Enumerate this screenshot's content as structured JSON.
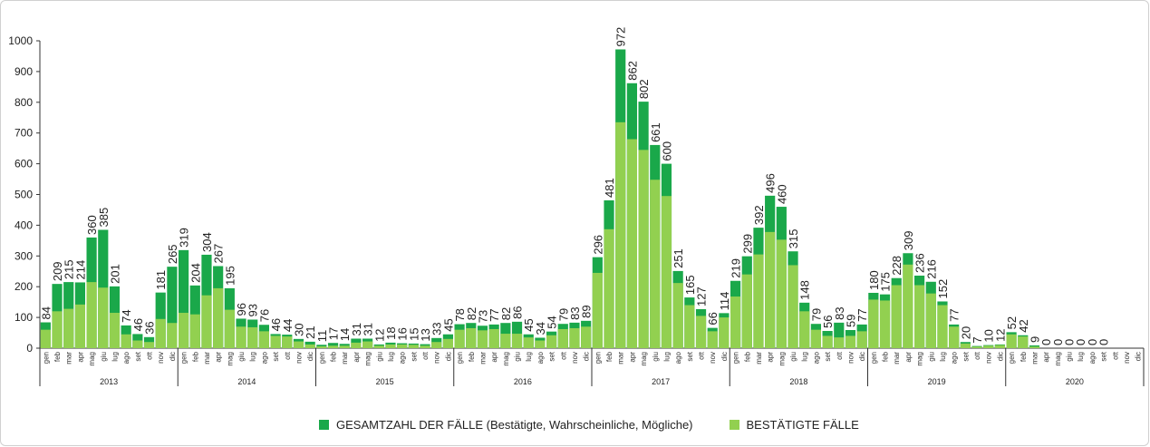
{
  "chart_data": {
    "type": "bar",
    "stacking": "overlay",
    "ylim": [
      0,
      1000
    ],
    "yticks": [
      0,
      100,
      200,
      300,
      400,
      500,
      600,
      700,
      800,
      900,
      1000
    ],
    "grid": false,
    "legend_position": "bottom-center",
    "month_labels": [
      "gen",
      "feb",
      "mar",
      "apr",
      "mag",
      "giu",
      "lug",
      "ago",
      "set",
      "ott",
      "nov",
      "dic"
    ],
    "years": [
      "2013",
      "2014",
      "2015",
      "2016",
      "2017",
      "2018",
      "2019",
      "2020"
    ],
    "series": [
      {
        "name": "GESAMTZAHL DER FÄLLE (Bestätigte, Wahrscheinliche, Mögliche)",
        "color": "#1aa84a",
        "values": [
          84,
          209,
          215,
          214,
          360,
          385,
          201,
          74,
          46,
          36,
          181,
          265,
          319,
          204,
          304,
          267,
          195,
          96,
          93,
          76,
          46,
          44,
          30,
          21,
          11,
          17,
          14,
          31,
          31,
          12,
          18,
          16,
          15,
          13,
          33,
          45,
          78,
          82,
          73,
          77,
          82,
          86,
          45,
          34,
          54,
          79,
          83,
          89,
          296,
          481,
          972,
          862,
          802,
          661,
          600,
          251,
          165,
          127,
          66,
          114,
          219,
          299,
          392,
          496,
          460,
          315,
          148,
          79,
          56,
          83,
          59,
          77,
          180,
          175,
          228,
          309,
          236,
          216,
          152,
          77,
          20,
          7,
          10,
          12,
          52,
          42,
          9,
          0,
          0,
          0,
          0,
          0,
          0,
          0,
          0,
          0
        ],
        "labels": [
          "84",
          "209",
          "215",
          "214",
          "360",
          "385",
          "201",
          "74",
          "46",
          "36",
          "181",
          "265",
          "319",
          "204",
          "304",
          "267",
          "195",
          "96",
          "93",
          "76",
          "46",
          "44",
          "30",
          "21",
          "11",
          "17",
          "14",
          "31",
          "31",
          "12",
          "18",
          "16",
          "15",
          "13",
          "33",
          "45",
          "78",
          "82",
          "73",
          "77",
          "82",
          "86",
          "45",
          "34",
          "54",
          "79",
          "83",
          "89",
          "296",
          "481",
          "972",
          "862",
          "802",
          "661",
          "600",
          "251",
          "165",
          "127",
          "66",
          "114",
          "219",
          "299",
          "392",
          "496",
          "460",
          "315",
          "148",
          "79",
          "56",
          "83",
          "59",
          "77",
          "180",
          "175",
          "228",
          "309",
          "236",
          "216",
          "152",
          "77",
          "20",
          "7",
          "10",
          "12",
          "52",
          "42",
          "9",
          "0",
          "0",
          "0",
          "0",
          "0",
          "0",
          "",
          "",
          ""
        ]
      },
      {
        "name": "BESTÄTIGTE FÄLLE",
        "color": "#92d050",
        "values": [
          60,
          120,
          128,
          142,
          215,
          197,
          115,
          45,
          25,
          20,
          95,
          82,
          115,
          110,
          172,
          195,
          125,
          70,
          68,
          55,
          40,
          38,
          22,
          12,
          6,
          8,
          8,
          18,
          22,
          8,
          12,
          12,
          11,
          8,
          20,
          30,
          60,
          65,
          58,
          62,
          47,
          47,
          35,
          25,
          42,
          62,
          65,
          70,
          245,
          387,
          735,
          680,
          645,
          548,
          495,
          212,
          140,
          105,
          55,
          100,
          168,
          240,
          305,
          378,
          353,
          270,
          120,
          60,
          40,
          35,
          40,
          55,
          158,
          155,
          205,
          272,
          205,
          178,
          140,
          70,
          15,
          5,
          8,
          10,
          45,
          38,
          5,
          0,
          0,
          0,
          0,
          0,
          0,
          0,
          0,
          0
        ]
      }
    ]
  }
}
